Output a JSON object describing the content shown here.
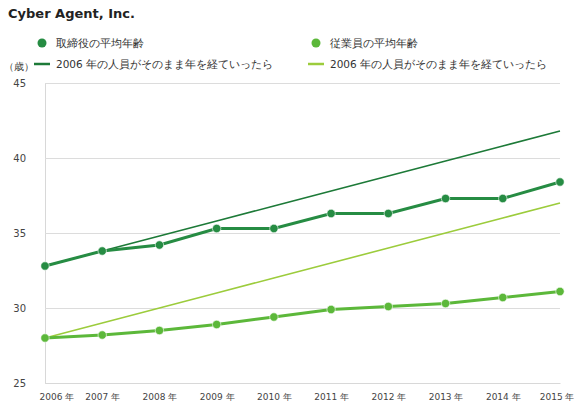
{
  "chart_data": {
    "type": "line",
    "title": "Cyber Agent, Inc.",
    "y_label": "（歳）",
    "categories": [
      "2006 年",
      "2007 年",
      "2008 年",
      "2009 年",
      "2010 年",
      "2011 年",
      "2012 年",
      "2013 年",
      "2014 年",
      "2015 年"
    ],
    "series": [
      {
        "name": "取締役の平均年齢",
        "color": "#268c43",
        "marker": "circle",
        "line_style": "solid",
        "values": [
          32.8,
          33.8,
          34.2,
          35.3,
          35.3,
          36.3,
          36.3,
          37.3,
          37.3,
          38.4
        ]
      },
      {
        "name": "2006 年の人員がそのまま年を経ていったら",
        "color": "#1d7a38",
        "marker": "none",
        "line_style": "solid",
        "values": [
          32.8,
          33.8,
          34.8,
          35.8,
          36.8,
          37.8,
          38.8,
          39.8,
          40.8,
          41.8
        ]
      },
      {
        "name": "従業員の平均年齢",
        "color": "#5cb83a",
        "marker": "circle",
        "line_style": "solid",
        "values": [
          28.0,
          28.2,
          28.5,
          28.9,
          29.4,
          29.9,
          30.1,
          30.3,
          30.7,
          31.1
        ]
      },
      {
        "name": "2006 年の人員がそのまま年を経ていったら",
        "color": "#9ccc3c",
        "marker": "none",
        "line_style": "solid",
        "values": [
          28.0,
          29.0,
          30.0,
          31.0,
          32.0,
          33.0,
          34.0,
          35.0,
          36.0,
          37.0
        ]
      }
    ],
    "ylim": [
      25,
      45
    ],
    "yticks": [
      25,
      30,
      35,
      40,
      45
    ],
    "grid": true
  }
}
